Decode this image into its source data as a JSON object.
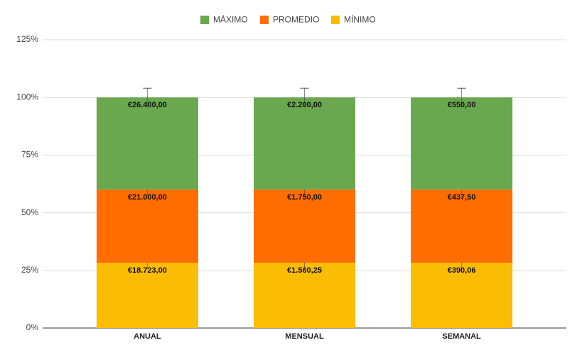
{
  "chart_data": {
    "type": "bar",
    "stacking": "percent",
    "categories": [
      "ANUAL",
      "MENSUAL",
      "SEMANAL"
    ],
    "series": [
      {
        "name": "MÍNIMO",
        "color": "#fbbc04",
        "values": [
          18723,
          1560.25,
          390.06
        ],
        "value_labels": [
          "€18.723,00",
          "€1.560,25",
          "€390,06"
        ]
      },
      {
        "name": "PROMEDIO",
        "color": "#ff6d01",
        "values": [
          21000,
          1750,
          437.5
        ],
        "value_labels": [
          "€21.000,00",
          "€1.750,00",
          "€437,50"
        ]
      },
      {
        "name": "MÁXIMO",
        "color": "#6aa84f",
        "values": [
          26400,
          2200,
          550
        ],
        "value_labels": [
          "€26.400,00",
          "€2.200,00",
          "€550,00"
        ]
      }
    ],
    "error_percent": 10,
    "ylim": [
      0,
      125
    ],
    "yticks": [
      {
        "value": 0,
        "label": "0%"
      },
      {
        "value": 25,
        "label": "25%"
      },
      {
        "value": 50,
        "label": "50%"
      },
      {
        "value": 75,
        "label": "75%"
      },
      {
        "value": 100,
        "label": "100%"
      },
      {
        "value": 125,
        "label": "125%"
      }
    ],
    "grid": true,
    "legend": "top"
  }
}
